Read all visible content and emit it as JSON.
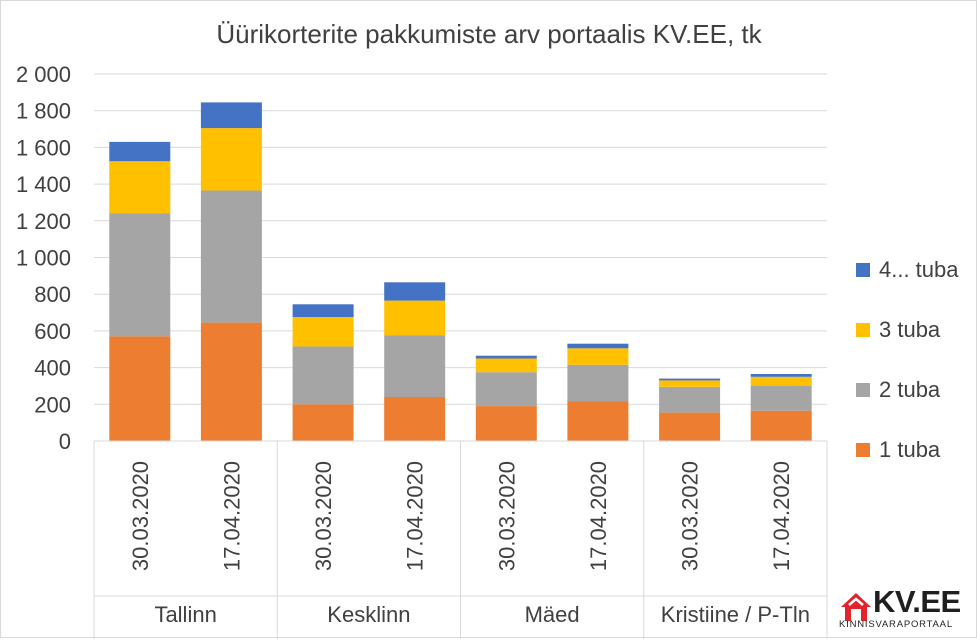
{
  "chart_data": {
    "type": "bar",
    "stacked": true,
    "title": "Üürikorterite pakkumiste arv portaalis KV.EE, tk",
    "groups": [
      {
        "label": "Tallinn",
        "dates": [
          "30.03.2020",
          "17.04.2020"
        ]
      },
      {
        "label": "Kesklinn",
        "dates": [
          "30.03.2020",
          "17.04.2020"
        ]
      },
      {
        "label": "Mäed",
        "dates": [
          "30.03.2020",
          "17.04.2020"
        ]
      },
      {
        "label": "Kristiine / P-Tln",
        "dates": [
          "30.03.2020",
          "17.04.2020"
        ]
      }
    ],
    "series": [
      {
        "name": "1 tuba",
        "color": "#ED7D31",
        "values": [
          570,
          645,
          200,
          240,
          190,
          215,
          155,
          165
        ]
      },
      {
        "name": "2 tuba",
        "color": "#A5A5A5",
        "values": [
          670,
          720,
          315,
          335,
          185,
          200,
          140,
          135
        ]
      },
      {
        "name": "3 tuba",
        "color": "#FFC000",
        "values": [
          285,
          340,
          160,
          190,
          75,
          90,
          35,
          50
        ]
      },
      {
        "name": "4... tuba",
        "color": "#4472C4",
        "values": [
          105,
          140,
          70,
          100,
          15,
          25,
          10,
          15
        ]
      }
    ],
    "yaxis": {
      "min": 0,
      "max": 2000,
      "step": 200,
      "tick_labels": [
        "0",
        "200",
        "400",
        "600",
        "800",
        "1 000",
        "1 200",
        "1 400",
        "1 600",
        "1 800",
        "2 000"
      ]
    },
    "grid": true,
    "legend_position": "right"
  },
  "logo": {
    "word": "KV.EE",
    "tagline": "KINNISVARAPORTAAL",
    "accent_color": "#E3242B"
  }
}
